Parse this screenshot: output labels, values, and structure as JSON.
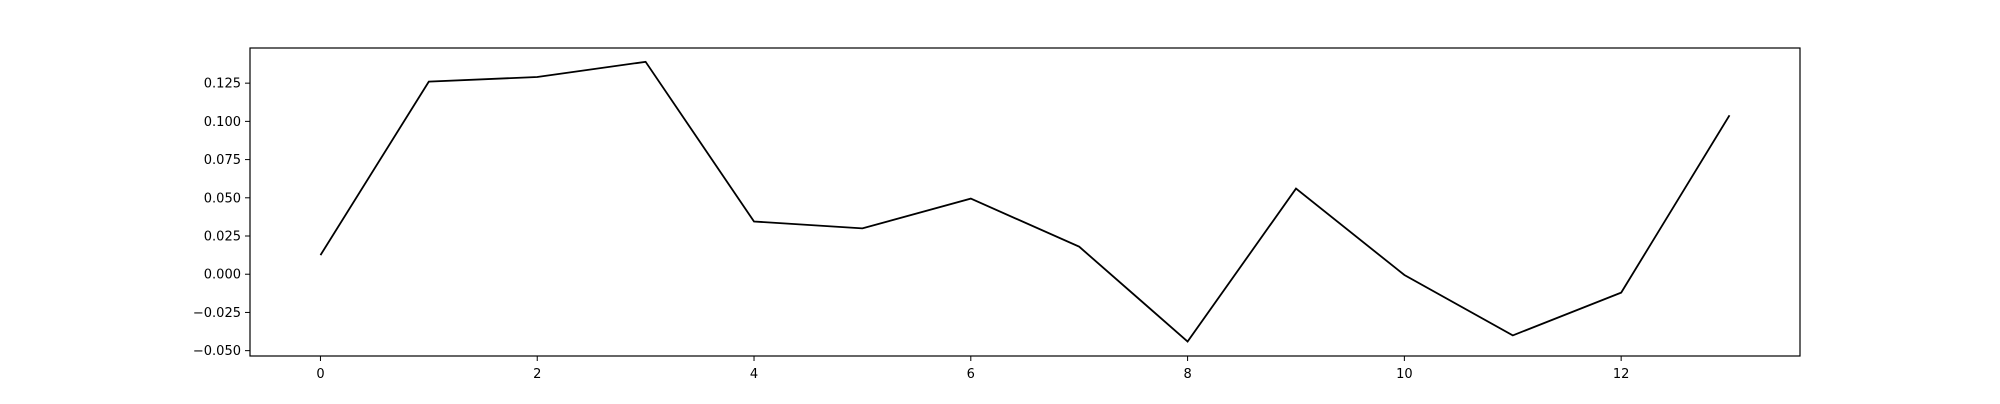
{
  "chart_data": {
    "type": "line",
    "title": "",
    "xlabel": "",
    "ylabel": "",
    "x": [
      0,
      1,
      2,
      3,
      4,
      5,
      6,
      7,
      8,
      9,
      10,
      11,
      12,
      13
    ],
    "series": [
      {
        "values": [
          0.0125,
          0.126,
          0.129,
          0.139,
          0.0345,
          0.03,
          0.0495,
          0.018,
          -0.044,
          0.056,
          -0.0005,
          -0.04,
          -0.012,
          0.104
        ],
        "color": "#000000"
      }
    ],
    "xlim": [
      -0.65,
      13.65
    ],
    "ylim": [
      -0.0535,
      0.148
    ],
    "xticks": [
      0,
      2,
      4,
      6,
      8,
      10,
      12
    ],
    "xtick_labels": [
      "0",
      "2",
      "4",
      "6",
      "8",
      "10",
      "12"
    ],
    "yticks": [
      -0.05,
      -0.025,
      0.0,
      0.025,
      0.05,
      0.075,
      0.1,
      0.125
    ],
    "ytick_labels": [
      "−0.050",
      "−0.025",
      "0.000",
      "0.025",
      "0.050",
      "0.075",
      "0.100",
      "0.125"
    ],
    "grid": false,
    "legend": "none"
  }
}
